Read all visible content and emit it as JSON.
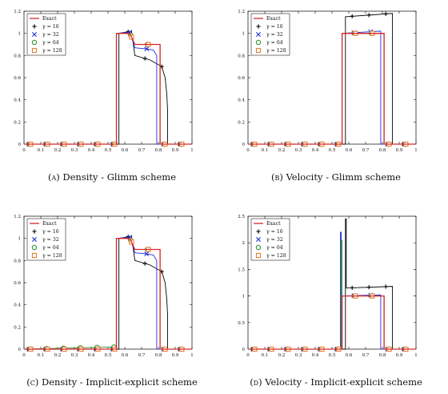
{
  "colors": {
    "exact": "#d62728",
    "g16": "#000000",
    "g32": "#1f2fd6",
    "g64": "#2a8a2a",
    "g128": "#e8731c",
    "frame": "#222222"
  },
  "legend": {
    "exact": "Exact",
    "g16": "γ = 16",
    "g32": "γ = 32",
    "g64": "γ = 64",
    "g128": "γ = 128"
  },
  "panels": [
    {
      "tag": "(a)",
      "caption": "Density - Glimm scheme"
    },
    {
      "tag": "(b)",
      "caption": "Velocity - Glimm scheme"
    },
    {
      "tag": "(c)",
      "caption": "Density - Implicit-explicit scheme"
    },
    {
      "tag": "(d)",
      "caption": "Velocity - Implicit-explicit scheme"
    }
  ],
  "chart_data": [
    {
      "type": "line",
      "title": "Density - Glimm scheme",
      "xlim": [
        0,
        1
      ],
      "ylim": [
        0,
        1.2
      ],
      "xticks": [
        "0",
        "0.1",
        "0.2",
        "0.3",
        "0.4",
        "0.5",
        "0.6",
        "0.7",
        "0.8",
        "0.9",
        "1"
      ],
      "yticks": [
        "0",
        "0.2",
        "0.4",
        "0.6",
        "0.8",
        "1",
        "1.2"
      ],
      "legend_position": "top-left",
      "series": [
        {
          "name": "Exact",
          "style": "line",
          "x": [
            0,
            0.55,
            0.55,
            0.63,
            0.66,
            0.81,
            0.81,
            1
          ],
          "y": [
            0,
            0,
            1.0,
            1.0,
            0.9,
            0.9,
            0,
            0
          ]
        },
        {
          "name": "γ = 16",
          "style": "line+plus",
          "x": [
            0,
            0.565,
            0.565,
            0.64,
            0.66,
            0.75,
            0.82,
            0.84,
            0.85,
            0.855,
            0.855,
            1
          ],
          "y": [
            0,
            0,
            1.0,
            1.02,
            0.8,
            0.76,
            0.7,
            0.6,
            0.45,
            0.3,
            0,
            0
          ]
        },
        {
          "name": "γ = 32",
          "style": "line+x",
          "x": [
            0,
            0.55,
            0.55,
            0.63,
            0.66,
            0.73,
            0.77,
            0.79,
            0.79,
            1
          ],
          "y": [
            0,
            0,
            1.0,
            1.01,
            0.87,
            0.86,
            0.85,
            0.8,
            0,
            0
          ]
        },
        {
          "name": "γ = 64",
          "style": "line+circle",
          "x": [
            0,
            0.55,
            0.55,
            0.63,
            0.66,
            0.81,
            0.81,
            1
          ],
          "y": [
            0,
            0,
            1.0,
            1.0,
            0.9,
            0.9,
            0,
            0
          ]
        },
        {
          "name": "γ = 128",
          "style": "line+square",
          "x": [
            0,
            0.55,
            0.55,
            0.63,
            0.66,
            0.81,
            0.81,
            1
          ],
          "y": [
            0,
            0,
            1.0,
            1.0,
            0.9,
            0.9,
            0,
            0
          ]
        }
      ]
    },
    {
      "type": "line",
      "title": "Velocity - Glimm scheme",
      "xlim": [
        0,
        1
      ],
      "ylim": [
        0,
        1.2
      ],
      "xticks": [
        "0",
        "0.1",
        "0.2",
        "0.3",
        "0.4",
        "0.5",
        "0.6",
        "0.7",
        "0.8",
        "0.9",
        "1"
      ],
      "yticks": [
        "0",
        "0.2",
        "0.4",
        "0.6",
        "0.8",
        "1",
        "1.2"
      ],
      "legend_position": "top-left",
      "series": [
        {
          "name": "Exact",
          "style": "line",
          "x": [
            0,
            0.56,
            0.56,
            0.81,
            0.81,
            1
          ],
          "y": [
            0,
            0,
            1.0,
            1.0,
            0,
            0
          ]
        },
        {
          "name": "γ = 16",
          "style": "line+plus",
          "x": [
            0,
            0.58,
            0.58,
            0.86,
            0.86,
            1
          ],
          "y": [
            0,
            0,
            1.15,
            1.18,
            0,
            0
          ]
        },
        {
          "name": "γ = 32",
          "style": "line+x",
          "x": [
            0,
            0.56,
            0.56,
            0.79,
            0.79,
            1
          ],
          "y": [
            0,
            0,
            1.0,
            1.02,
            0,
            0
          ]
        },
        {
          "name": "γ = 64",
          "style": "line+circle",
          "x": [
            0,
            0.56,
            0.56,
            0.81,
            0.81,
            1
          ],
          "y": [
            0,
            0,
            1.0,
            1.0,
            0,
            0
          ]
        },
        {
          "name": "γ = 128",
          "style": "line+square",
          "x": [
            0,
            0.56,
            0.56,
            0.81,
            0.81,
            1
          ],
          "y": [
            0,
            0,
            1.0,
            1.0,
            0,
            0
          ]
        }
      ]
    },
    {
      "type": "line",
      "title": "Density - Implicit-explicit scheme",
      "xlim": [
        0,
        1
      ],
      "ylim": [
        0,
        1.2
      ],
      "xticks": [
        "0",
        "0.1",
        "0.2",
        "0.3",
        "0.4",
        "0.5",
        "0.6",
        "0.7",
        "0.8",
        "0.9",
        "1"
      ],
      "yticks": [
        "0",
        "0.2",
        "0.4",
        "0.6",
        "0.8",
        "1",
        "1.2"
      ],
      "legend_position": "top-left",
      "series": [
        {
          "name": "Exact",
          "style": "line",
          "x": [
            0,
            0.55,
            0.55,
            0.63,
            0.66,
            0.81,
            0.81,
            1
          ],
          "y": [
            0,
            0,
            1.0,
            1.0,
            0.9,
            0.9,
            0,
            0
          ]
        },
        {
          "name": "γ = 16",
          "style": "line+plus",
          "x": [
            0,
            0.565,
            0.565,
            0.64,
            0.66,
            0.75,
            0.82,
            0.84,
            0.85,
            0.855,
            0.855,
            1
          ],
          "y": [
            0,
            0,
            1.0,
            1.02,
            0.8,
            0.76,
            0.7,
            0.6,
            0.45,
            0.3,
            0,
            0
          ]
        },
        {
          "name": "γ = 32",
          "style": "line+x",
          "x": [
            0,
            0.55,
            0.55,
            0.63,
            0.66,
            0.73,
            0.77,
            0.79,
            0.79,
            1
          ],
          "y": [
            0,
            0,
            1.0,
            1.01,
            0.87,
            0.86,
            0.85,
            0.8,
            0,
            0
          ]
        },
        {
          "name": "γ = 64",
          "style": "line+circle",
          "x": [
            0,
            0.55,
            0.55,
            0.63,
            0.66,
            0.81,
            0.81,
            1
          ],
          "y": [
            0,
            0.02,
            1.0,
            1.0,
            0.9,
            0.9,
            0,
            0
          ]
        },
        {
          "name": "γ = 128",
          "style": "line+square",
          "x": [
            0,
            0.55,
            0.55,
            0.63,
            0.66,
            0.81,
            0.81,
            1
          ],
          "y": [
            0,
            0,
            1.0,
            1.0,
            0.9,
            0.9,
            0,
            0
          ]
        }
      ]
    },
    {
      "type": "line",
      "title": "Velocity - Implicit-explicit scheme",
      "xlim": [
        0,
        1
      ],
      "ylim": [
        0,
        2.5
      ],
      "xticks": [
        "0",
        "0.1",
        "0.2",
        "0.3",
        "0.4",
        "0.5",
        "0.6",
        "0.7",
        "0.8",
        "0.9",
        "1"
      ],
      "yticks": [
        "0",
        "0.5",
        "1",
        "1.5",
        "2",
        "2.5"
      ],
      "legend_position": "top-left",
      "series": [
        {
          "name": "Exact",
          "style": "line",
          "x": [
            0,
            0.56,
            0.56,
            0.81,
            0.81,
            1
          ],
          "y": [
            0,
            0,
            1.0,
            1.0,
            0,
            0
          ]
        },
        {
          "name": "γ = 16",
          "style": "line+plus",
          "x": [
            0,
            0.58,
            0.58,
            0.585,
            0.585,
            0.86,
            0.86,
            1
          ],
          "y": [
            0,
            0,
            2.45,
            2.45,
            1.15,
            1.18,
            0,
            0
          ]
        },
        {
          "name": "γ = 32",
          "style": "line+x",
          "x": [
            0,
            0.55,
            0.55,
            0.555,
            0.555,
            0.79,
            0.79,
            1
          ],
          "y": [
            0,
            0,
            2.2,
            2.2,
            1.0,
            1.02,
            0,
            0
          ]
        },
        {
          "name": "γ = 64",
          "style": "line+circle",
          "x": [
            0,
            0.555,
            0.555,
            0.56,
            0.56,
            0.81,
            0.81,
            1
          ],
          "y": [
            0,
            0,
            2.05,
            2.05,
            1.0,
            1.0,
            0,
            0
          ]
        },
        {
          "name": "γ = 128",
          "style": "line+square",
          "x": [
            0,
            0.56,
            0.56,
            0.81,
            0.81,
            1
          ],
          "y": [
            0,
            0,
            1.0,
            1.0,
            0,
            0
          ]
        }
      ]
    }
  ]
}
